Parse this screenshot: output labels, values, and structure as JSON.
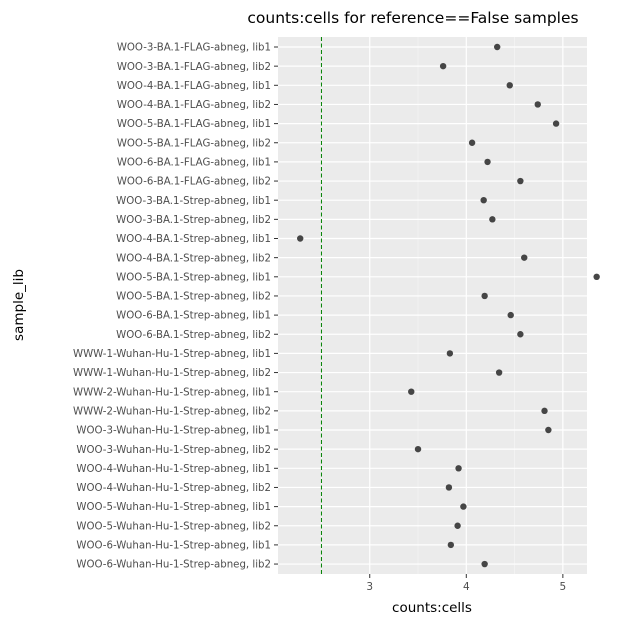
{
  "chart_data": {
    "type": "scatter",
    "title": "counts:cells for reference==False samples",
    "xlabel": "counts:cells",
    "ylabel": "sample_lib",
    "xlim": [
      2.05,
      5.25
    ],
    "x_ticks": [
      3,
      4,
      5
    ],
    "x_minor_ticks": [
      2.5,
      3.5,
      4.5
    ],
    "grid": true,
    "threshold_line": {
      "x": 2.5,
      "color": "#008000",
      "style": "dashed"
    },
    "point_color": "#333333",
    "panel_background": "#ebebeb",
    "categories": [
      "WOO-3-BA.1-FLAG-abneg, lib1",
      "WOO-3-BA.1-FLAG-abneg, lib2",
      "WOO-4-BA.1-FLAG-abneg, lib1",
      "WOO-4-BA.1-FLAG-abneg, lib2",
      "WOO-5-BA.1-FLAG-abneg, lib1",
      "WOO-5-BA.1-FLAG-abneg, lib2",
      "WOO-6-BA.1-FLAG-abneg, lib1",
      "WOO-6-BA.1-FLAG-abneg, lib2",
      "WOO-3-BA.1-Strep-abneg, lib1",
      "WOO-3-BA.1-Strep-abneg, lib2",
      "WOO-4-BA.1-Strep-abneg, lib1",
      "WOO-4-BA.1-Strep-abneg, lib2",
      "WOO-5-BA.1-Strep-abneg, lib1",
      "WOO-5-BA.1-Strep-abneg, lib2",
      "WOO-6-BA.1-Strep-abneg, lib1",
      "WOO-6-BA.1-Strep-abneg, lib2",
      "WWW-1-Wuhan-Hu-1-Strep-abneg, lib1",
      "WWW-1-Wuhan-Hu-1-Strep-abneg, lib2",
      "WWW-2-Wuhan-Hu-1-Strep-abneg, lib1",
      "WWW-2-Wuhan-Hu-1-Strep-abneg, lib2",
      "WOO-3-Wuhan-Hu-1-Strep-abneg, lib1",
      "WOO-3-Wuhan-Hu-1-Strep-abneg, lib2",
      "WOO-4-Wuhan-Hu-1-Strep-abneg, lib1",
      "WOO-4-Wuhan-Hu-1-Strep-abneg, lib2",
      "WOO-5-Wuhan-Hu-1-Strep-abneg, lib1",
      "WOO-5-Wuhan-Hu-1-Strep-abneg, lib2",
      "WOO-6-Wuhan-Hu-1-Strep-abneg, lib1",
      "WOO-6-Wuhan-Hu-1-Strep-abneg, lib2"
    ],
    "values": [
      4.32,
      3.76,
      4.45,
      4.74,
      4.93,
      4.06,
      4.22,
      4.56,
      4.18,
      4.27,
      2.28,
      4.6,
      5.35,
      4.19,
      4.46,
      4.56,
      3.83,
      4.34,
      3.43,
      4.81,
      4.85,
      3.5,
      3.92,
      3.82,
      3.97,
      3.91,
      3.84,
      4.19
    ]
  }
}
